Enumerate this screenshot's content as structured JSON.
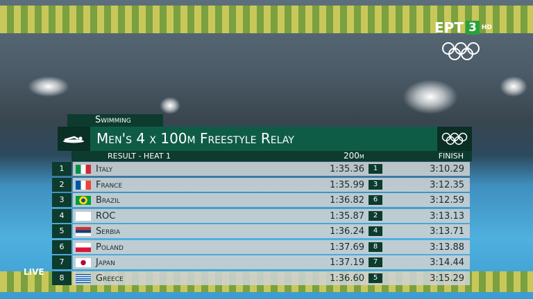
{
  "broadcaster": {
    "name": "ΕΡΤ",
    "channel": "3",
    "quality": "HD"
  },
  "live": "LIVE",
  "sport": "Swimming",
  "title": "Men's 4 x 100m Freestyle Relay",
  "subtitle": "RESULT - HEAT 1",
  "columns": {
    "split": "200m",
    "finish": "FINISH"
  },
  "rows": [
    {
      "rank": "1",
      "country": "Italy",
      "split": "1:35.36",
      "split_rank": "1",
      "finish": "3:10.29"
    },
    {
      "rank": "2",
      "country": "France",
      "split": "1:35.99",
      "split_rank": "3",
      "finish": "3:12.35"
    },
    {
      "rank": "3",
      "country": "Brazil",
      "split": "1:36.82",
      "split_rank": "6",
      "finish": "3:12.59"
    },
    {
      "rank": "4",
      "country": "ROC",
      "split": "1:35.87",
      "split_rank": "2",
      "finish": "3:13.13"
    },
    {
      "rank": "5",
      "country": "Serbia",
      "split": "1:36.24",
      "split_rank": "4",
      "finish": "3:13.71"
    },
    {
      "rank": "6",
      "country": "Poland",
      "split": "1:37.69",
      "split_rank": "8",
      "finish": "3:13.88"
    },
    {
      "rank": "7",
      "country": "Japan",
      "split": "1:37.19",
      "split_rank": "7",
      "finish": "3:14.44"
    },
    {
      "rank": "8",
      "country": "Greece",
      "split": "1:36.60",
      "split_rank": "5",
      "finish": "3:15.29"
    }
  ]
}
